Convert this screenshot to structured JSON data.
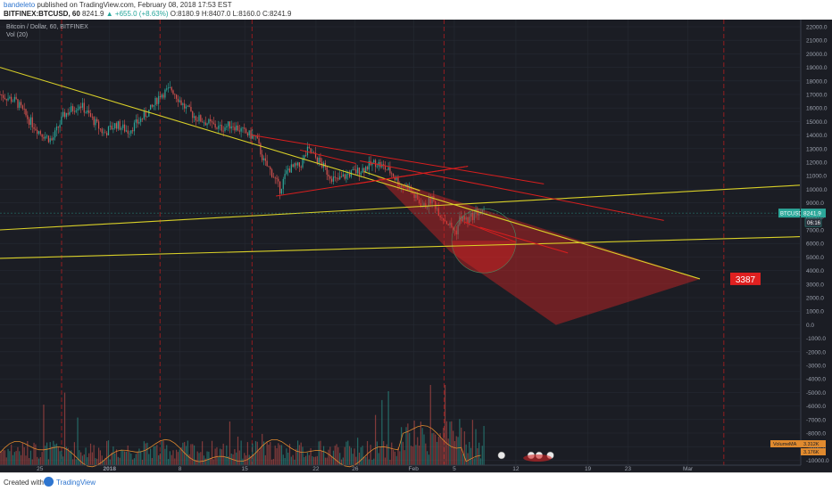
{
  "header": {
    "author": "bandeleto",
    "published_text": "published on TradingView.com, February 08, 2018 17:53 EST",
    "symbol": "BITFINEX:BTCUSD, 60",
    "last": "8241.9",
    "change": "+655.0 (+8.63%)",
    "open": "O:8180.9",
    "high": "H:8407.0",
    "low": "L:8160.0",
    "close": "C:8241.9"
  },
  "legend": {
    "title": "Bitcoin / Dollar, 60, BITFINEX",
    "volume": "Vol (20)"
  },
  "footer": {
    "created_with": "Created with",
    "brand": "TradingView"
  },
  "colors": {
    "background": "#1b1d24",
    "grid": "#262a33",
    "trendline_yellow": "#d9d028",
    "trendline_red": "#d81e1e",
    "target_red": "#d42424",
    "candle_up": "#2ca89a",
    "candle_down": "#d9534f"
  },
  "chart_data": {
    "type": "candlestick",
    "y_axis": {
      "ticks": [
        "22000.0",
        "21000.0",
        "20000.0",
        "19000.0",
        "18000.0",
        "17000.0",
        "16000.0",
        "15000.0",
        "14000.0",
        "13000.0",
        "12000.0",
        "11000.0",
        "10000.0",
        "9000.0",
        "8000.0",
        "7000.0",
        "6000.0",
        "5000.0",
        "4000.0",
        "3000.0",
        "2000.0",
        "1000.0",
        "0.0",
        "-1000.0",
        "-2000.0",
        "-3000.0",
        "-4000.0",
        "-5000.0",
        "-6000.0",
        "-7000.0",
        "-8000.0",
        "-9000.0",
        "-10000.0"
      ],
      "range": [
        -10000,
        22000
      ]
    },
    "x_axis": {
      "ticks": [
        "25",
        "2018",
        "8",
        "15",
        "22",
        "26",
        "Feb",
        "5",
        "12",
        "19",
        "23",
        "Mar"
      ]
    },
    "price_label": {
      "symbol": "BTCUSD",
      "value": "8241.9",
      "countdown": "06:16"
    },
    "target_label": "3387",
    "volume_labels": {
      "volume": "Volume",
      "volume_value": "3.312K",
      "ma": "MA",
      "ma_value": "3.176K"
    },
    "price_path": [
      [
        0,
        17000
      ],
      [
        0.02,
        16500
      ],
      [
        0.035,
        15200
      ],
      [
        0.05,
        14200
      ],
      [
        0.065,
        13600
      ],
      [
        0.08,
        15500
      ],
      [
        0.1,
        16300
      ],
      [
        0.115,
        15200
      ],
      [
        0.13,
        14100
      ],
      [
        0.145,
        14800
      ],
      [
        0.16,
        14300
      ],
      [
        0.175,
        15100
      ],
      [
        0.19,
        16000
      ],
      [
        0.2,
        17000
      ],
      [
        0.215,
        17400
      ],
      [
        0.23,
        16100
      ],
      [
        0.245,
        15300
      ],
      [
        0.26,
        14900
      ],
      [
        0.275,
        14500
      ],
      [
        0.29,
        14800
      ],
      [
        0.305,
        14200
      ],
      [
        0.32,
        13800
      ],
      [
        0.33,
        12000
      ],
      [
        0.34,
        11200
      ],
      [
        0.35,
        10000
      ],
      [
        0.36,
        11500
      ],
      [
        0.375,
        11700
      ],
      [
        0.385,
        12900
      ],
      [
        0.4,
        12000
      ],
      [
        0.41,
        11200
      ],
      [
        0.42,
        10600
      ],
      [
        0.435,
        11100
      ],
      [
        0.45,
        11400
      ],
      [
        0.46,
        11700
      ],
      [
        0.47,
        12000
      ],
      [
        0.48,
        11600
      ],
      [
        0.49,
        11200
      ],
      [
        0.5,
        10300
      ],
      [
        0.51,
        10200
      ],
      [
        0.52,
        9300
      ],
      [
        0.53,
        8700
      ],
      [
        0.54,
        9300
      ],
      [
        0.55,
        8200
      ],
      [
        0.56,
        7500
      ],
      [
        0.57,
        6800
      ],
      [
        0.575,
        7900
      ],
      [
        0.585,
        7700
      ],
      [
        0.595,
        8300
      ],
      [
        0.605,
        8241.9
      ]
    ]
  }
}
